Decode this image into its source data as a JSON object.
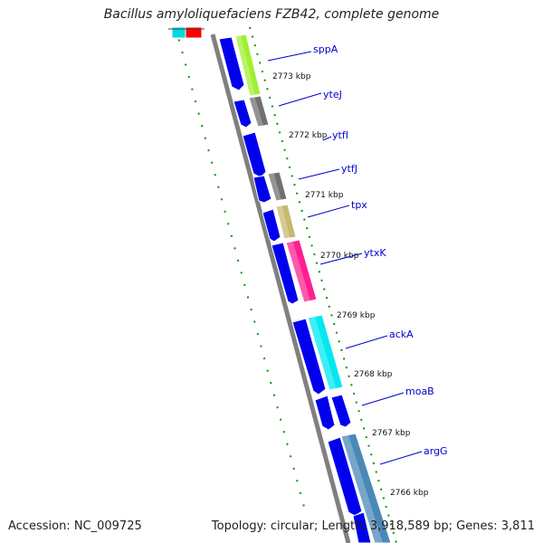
{
  "title": "Bacillus amyloliquefaciens FZB42, complete genome",
  "footer": {
    "accession": "Accession: NC_009725",
    "summary": "Topology: circular; Length: 3,918,589 bp; Genes: 3,811"
  },
  "colors": {
    "backbone": "#808080",
    "tick": "#009900",
    "cds_forward": "#0000ee",
    "label": "#0000cc"
  },
  "kbp_labels": [
    "2773 kbp",
    "2772 kbp",
    "2771 kbp",
    "2770 kbp",
    "2769 kbp",
    "2768 kbp",
    "2767 kbp",
    "2766 kbp"
  ],
  "genes": [
    {
      "name": "sppA",
      "color": "#a0f030"
    },
    {
      "name": "yteJ",
      "color": "#707070"
    },
    {
      "name": "ytfI",
      "color": "#0000ee"
    },
    {
      "name": "ytfJ",
      "color": "#707070"
    },
    {
      "name": "tpx",
      "color": "#c8b870"
    },
    {
      "name": "ytxK",
      "color": "#ff2090"
    },
    {
      "name": "ackA",
      "color": "#00e8f0"
    },
    {
      "name": "moaB",
      "color": "#0000ee"
    },
    {
      "name": "argG",
      "color": "#4a88b8"
    }
  ]
}
